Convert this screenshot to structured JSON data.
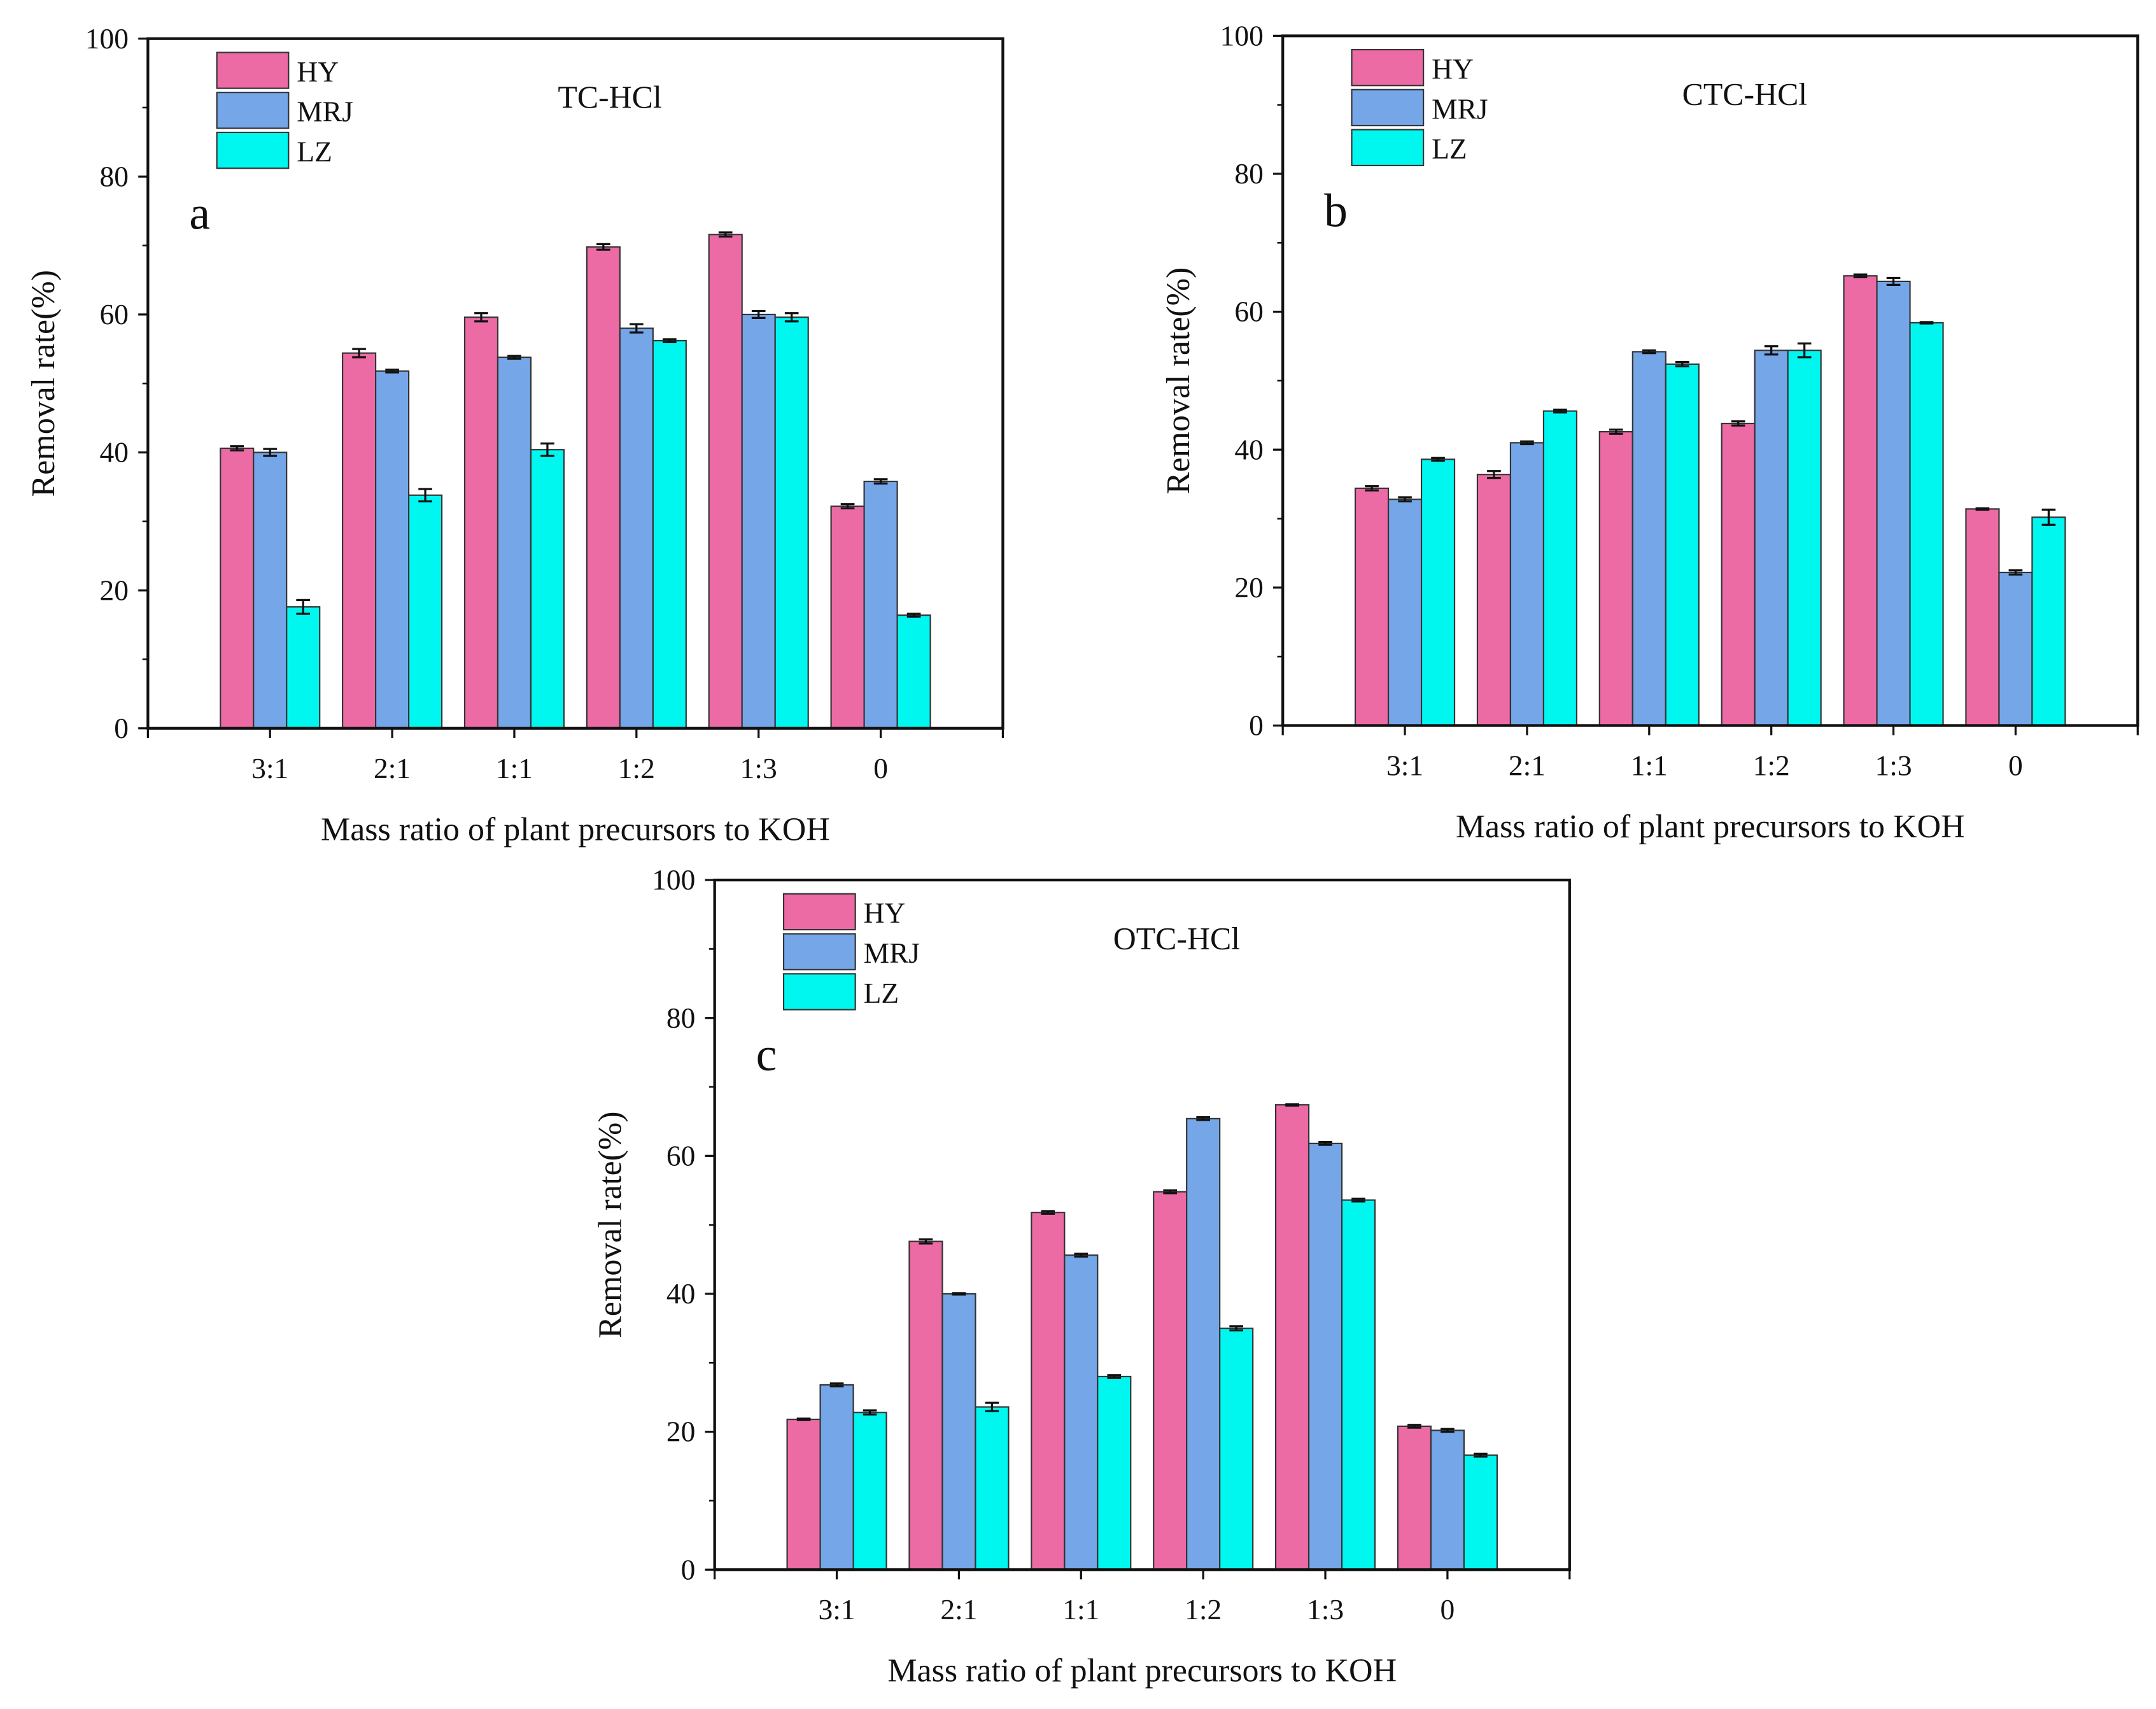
{
  "colors": {
    "HY": "#ec6ba4",
    "MRJ": "#74a6e8",
    "LZ": "#00f7f0"
  },
  "chart_data": [
    {
      "type": "bar",
      "panel": "a",
      "title": "TC-HCl",
      "xlabel": "Mass ratio of plant precursors to KOH",
      "ylabel": "Removal rate(%)",
      "ylim": [
        0,
        100
      ],
      "yticks": [
        0,
        20,
        40,
        60,
        80,
        100
      ],
      "categories": [
        "3:1",
        "2:1",
        "1:1",
        "1:2",
        "1:3",
        "0"
      ],
      "legend": "top-left",
      "series": [
        {
          "name": "HY",
          "values": [
            40.6,
            54.4,
            59.6,
            69.8,
            71.6,
            32.2
          ],
          "errors": [
            0.3,
            0.6,
            0.6,
            0.4,
            0.3,
            0.3
          ]
        },
        {
          "name": "MRJ",
          "values": [
            40.0,
            51.8,
            53.8,
            58.0,
            60.0,
            35.8
          ],
          "errors": [
            0.5,
            0.2,
            0.2,
            0.6,
            0.5,
            0.3
          ]
        },
        {
          "name": "LZ",
          "values": [
            17.6,
            33.8,
            40.4,
            56.2,
            59.6,
            16.4
          ],
          "errors": [
            1.0,
            0.9,
            0.9,
            0.2,
            0.6,
            0.2
          ]
        }
      ]
    },
    {
      "type": "bar",
      "panel": "b",
      "title": "CTC-HCl",
      "xlabel": "Mass ratio of plant precursors to KOH",
      "ylabel": "Removal rate(%)",
      "ylim": [
        0,
        100
      ],
      "yticks": [
        0,
        20,
        40,
        60,
        80,
        100
      ],
      "categories": [
        "3:1",
        "2:1",
        "1:1",
        "1:2",
        "1:3",
        "0"
      ],
      "legend": "top-left",
      "series": [
        {
          "name": "HY",
          "values": [
            34.4,
            36.4,
            42.6,
            43.8,
            65.2,
            31.4
          ],
          "errors": [
            0.3,
            0.5,
            0.3,
            0.3,
            0.2,
            0.1
          ]
        },
        {
          "name": "MRJ",
          "values": [
            32.8,
            41.0,
            54.2,
            54.4,
            64.4,
            22.2
          ],
          "errors": [
            0.3,
            0.2,
            0.2,
            0.6,
            0.5,
            0.3
          ]
        },
        {
          "name": "LZ",
          "values": [
            38.6,
            45.6,
            52.4,
            54.4,
            58.4,
            30.2
          ],
          "errors": [
            0.2,
            0.2,
            0.3,
            1.0,
            0.1,
            1.1
          ]
        }
      ]
    },
    {
      "type": "bar",
      "panel": "c",
      "title": "OTC-HCl",
      "xlabel": "Mass ratio of plant precursors to KOH",
      "ylabel": "Removal rate(%)",
      "ylim": [
        0,
        100
      ],
      "yticks": [
        0,
        20,
        40,
        60,
        80,
        100
      ],
      "categories": [
        "3:1",
        "2:1",
        "1:1",
        "1:2",
        "1:3",
        "0"
      ],
      "legend": "top-left",
      "series": [
        {
          "name": "HY",
          "values": [
            21.8,
            47.6,
            51.8,
            54.8,
            67.4,
            20.8
          ],
          "errors": [
            0.1,
            0.3,
            0.2,
            0.2,
            0.1,
            0.2
          ]
        },
        {
          "name": "MRJ",
          "values": [
            26.8,
            40.0,
            45.6,
            65.4,
            61.8,
            20.2
          ],
          "errors": [
            0.2,
            0.1,
            0.2,
            0.2,
            0.2,
            0.2
          ]
        },
        {
          "name": "LZ",
          "values": [
            22.8,
            23.6,
            28.0,
            35.0,
            53.6,
            16.6
          ],
          "errors": [
            0.3,
            0.6,
            0.2,
            0.3,
            0.2,
            0.2
          ]
        }
      ]
    }
  ]
}
